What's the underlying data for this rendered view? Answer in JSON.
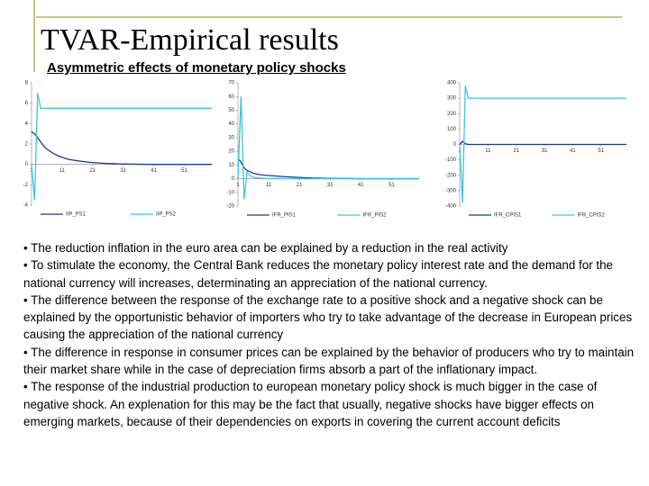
{
  "title": "TVAR-Empirical results",
  "subtitle": "Asymmetric effects of monetary policy shocks",
  "bullets": [
    "• The reduction inflation in the euro area can be explained by a reduction in the real activity",
    "• To stimulate the economy, the Central Bank reduces the monetary policy interest rate and the demand for the national currency will increases, determinating an appreciation of the national currency.",
    "• The difference between the response of the exchange rate to a positive shock and a negative shock can be explained by the opportunistic behavior of importers who try to take advantage of the decrease in European prices causing the appreciation of the national currency",
    "• The difference in response in consumer prices can be explained by the behavior of producers who try to maintain their market share while in the case of depreciation firms absorb a part of the inflationary impact.",
    "• The response of the industrial production to european monetary policy shock is much bigger in the case of negative shock. An explenation for this may be the fact that usually, negative shocks have bigger effects on emerging markets, because of their dependencies on exports in covering the current account deficits"
  ],
  "chart_data": [
    {
      "type": "line",
      "x": [
        1,
        2,
        3,
        4,
        5,
        6,
        8,
        10,
        13,
        16,
        20,
        25,
        30,
        35,
        40,
        45,
        50,
        55,
        60
      ],
      "xlim": [
        1,
        60
      ],
      "xticks": [
        1,
        11,
        21,
        31,
        41,
        51
      ],
      "ylim": [
        -4,
        8
      ],
      "yticks": [
        -4,
        -2,
        0,
        2,
        4,
        6,
        8
      ],
      "series": [
        {
          "name": "IIP_PS1",
          "color": "#1f3a8a",
          "values": [
            3.2,
            3.0,
            2.6,
            2.2,
            1.8,
            1.5,
            1.1,
            0.8,
            0.5,
            0.35,
            0.2,
            0.1,
            0.05,
            0.02,
            0,
            0,
            0,
            0,
            0
          ]
        },
        {
          "name": "IIP_PS2",
          "color": "#3ec3e0",
          "values": [
            0,
            -3.5,
            7,
            5.5,
            5.5,
            5.5,
            5.5,
            5.5,
            5.5,
            5.5,
            5.5,
            5.5,
            5.5,
            5.5,
            5.5,
            5.5,
            5.5,
            5.5,
            5.5
          ]
        }
      ]
    },
    {
      "type": "line",
      "x": [
        1,
        2,
        3,
        4,
        5,
        6,
        8,
        10,
        13,
        16,
        20,
        25,
        30,
        35,
        40,
        45,
        50,
        55,
        60
      ],
      "xlim": [
        1,
        60
      ],
      "xticks": [
        1,
        11,
        21,
        31,
        41,
        51
      ],
      "ylim": [
        -20,
        70
      ],
      "yticks": [
        -20,
        -10,
        0,
        10,
        20,
        30,
        40,
        50,
        60,
        70
      ],
      "series": [
        {
          "name": "IFR_PIS1",
          "color": "#1f3a8a",
          "values": [
            15,
            12,
            8,
            6,
            5,
            4,
            3,
            2.5,
            2,
            1.5,
            1,
            0.5,
            0.3,
            0.2,
            0,
            0,
            0,
            0,
            0
          ]
        },
        {
          "name": "IFR_PIS2",
          "color": "#3ec3e0",
          "values": [
            0,
            60,
            -15,
            5,
            2,
            1,
            0.5,
            0.3,
            0.2,
            0.1,
            0,
            0,
            0,
            0,
            0,
            0,
            0,
            0,
            0
          ]
        }
      ]
    },
    {
      "type": "line",
      "x": [
        1,
        2,
        3,
        4,
        5,
        6,
        8,
        10,
        13,
        16,
        20,
        25,
        30,
        35,
        40,
        45,
        50,
        55,
        60
      ],
      "xlim": [
        1,
        60
      ],
      "xticks": [
        1,
        11,
        21,
        31,
        41,
        51
      ],
      "ylim": [
        -400,
        400
      ],
      "yticks": [
        -400,
        -300,
        -200,
        -100,
        0,
        100,
        200,
        300,
        400
      ],
      "series": [
        {
          "name": "IFR_CPIS1",
          "color": "#1f3a8a",
          "values": [
            0,
            20,
            5,
            0,
            0,
            0,
            0,
            0,
            0,
            0,
            0,
            0,
            0,
            0,
            0,
            0,
            0,
            0,
            0
          ]
        },
        {
          "name": "IFR_CPIS2",
          "color": "#3ec3e0",
          "values": [
            0,
            -380,
            380,
            300,
            300,
            300,
            300,
            300,
            300,
            300,
            300,
            300,
            300,
            300,
            300,
            300,
            300,
            300,
            300
          ]
        }
      ]
    }
  ]
}
